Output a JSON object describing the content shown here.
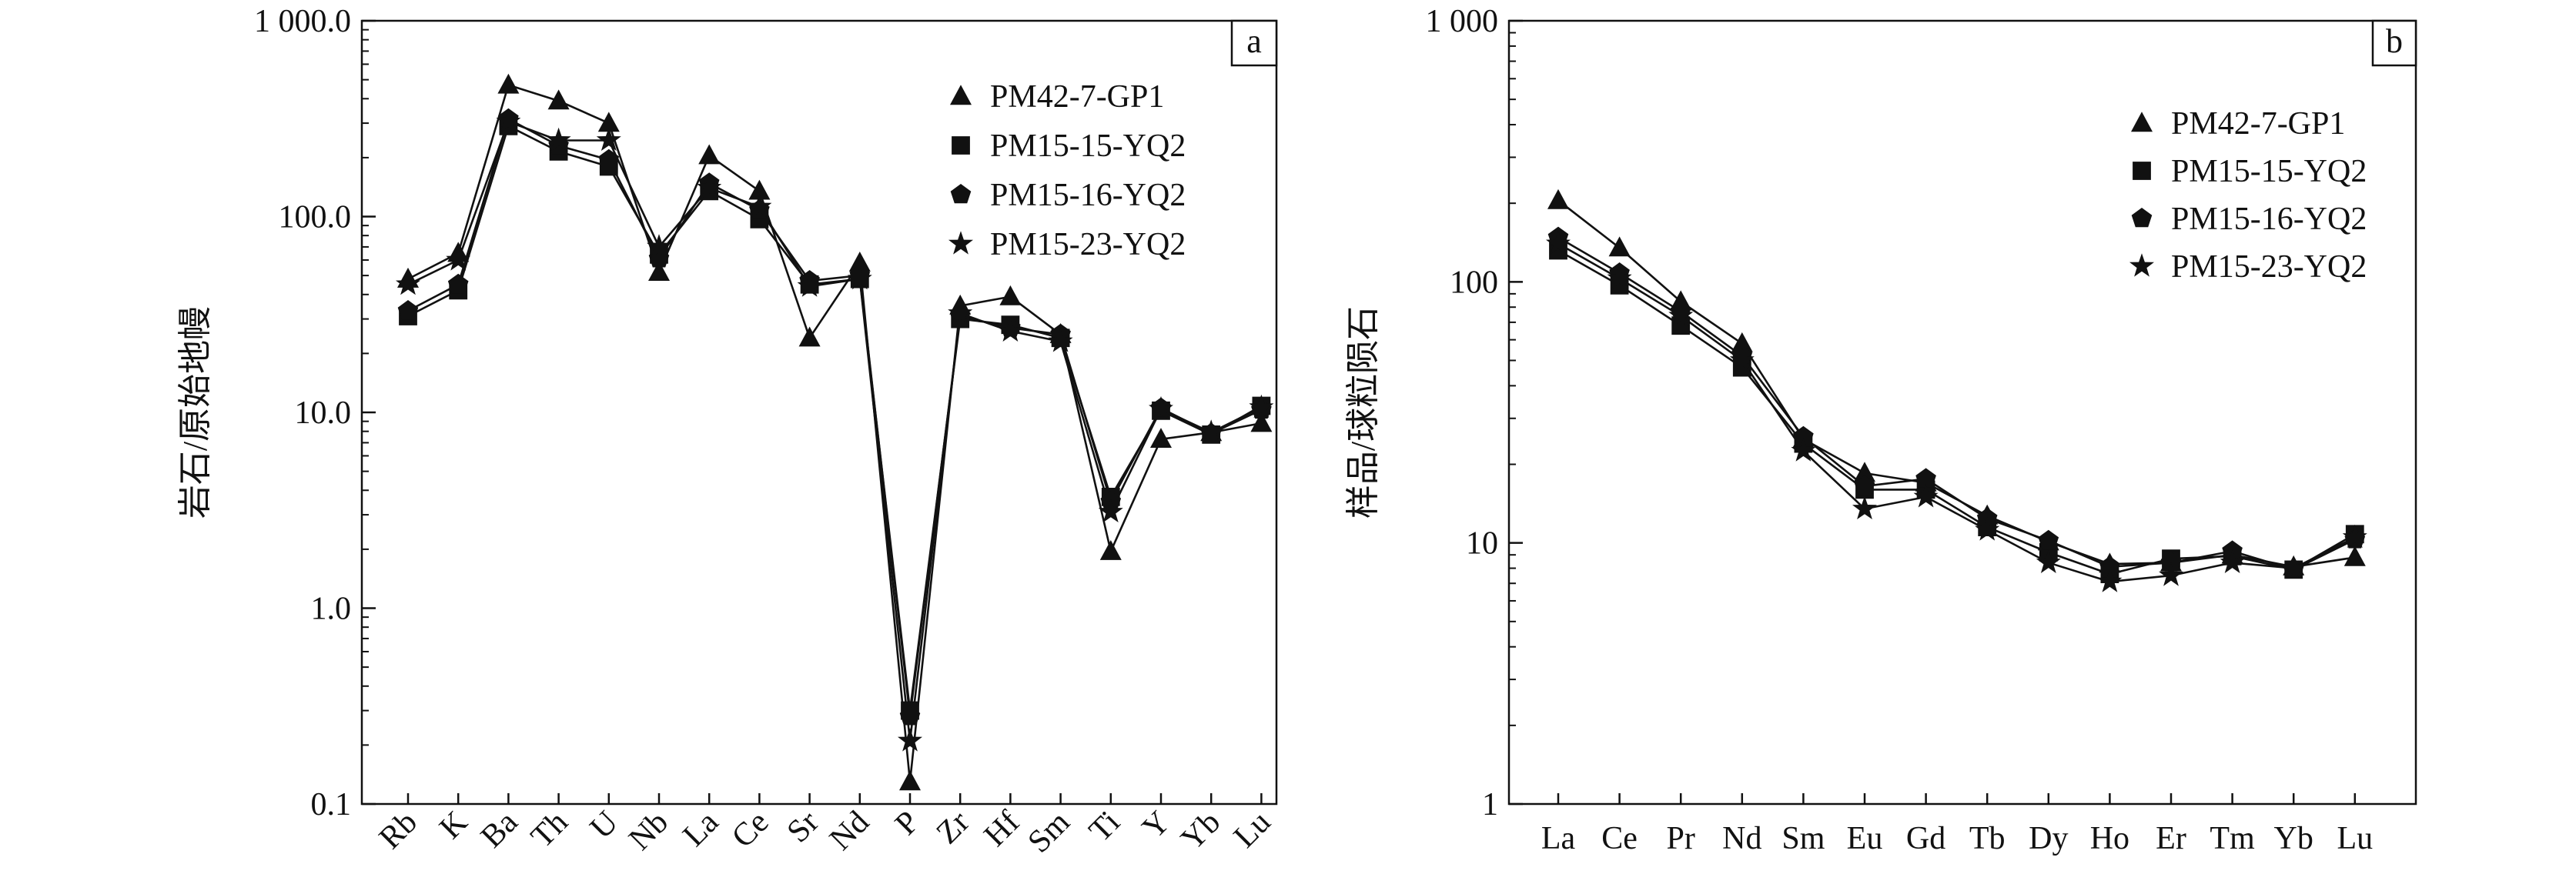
{
  "chart_data": [
    {
      "panel_label": "a",
      "type": "line",
      "ylabel": "岩石/原始地幔",
      "xlabel": "",
      "yscale": "log",
      "ylim": [
        0.1,
        1000
      ],
      "ytick_values": [
        0.1,
        1,
        10,
        100,
        1000
      ],
      "ytick_labels": [
        "0.1",
        "1.0",
        "10.0",
        "100.0",
        "1 000.0"
      ],
      "categories": [
        "Rb",
        "K",
        "Ba",
        "Th",
        "U",
        "Nb",
        "La",
        "Ce",
        "Sr",
        "Nd",
        "P",
        "Zr",
        "Hf",
        "Sm",
        "Ti",
        "Y",
        "Yb",
        "Lu"
      ],
      "legend_position": "top-right",
      "grid": false,
      "series": [
        {
          "name": "PM42-7-GP1",
          "marker": "triangle",
          "values": [
            48,
            65,
            470,
            390,
            300,
            52,
            205,
            135,
            24,
            58,
            0.13,
            35,
            39,
            25,
            1.95,
            7.3,
            7.9,
            8.8
          ]
        },
        {
          "name": "PM15-15-YQ2",
          "marker": "square",
          "values": [
            31,
            42,
            290,
            215,
            180,
            64,
            135,
            97,
            45,
            48,
            0.3,
            30,
            28,
            24,
            3.7,
            10.2,
            7.7,
            10.8
          ]
        },
        {
          "name": "PM15-16-YQ2",
          "marker": "pentagon",
          "values": [
            33,
            45,
            315,
            230,
            195,
            61,
            148,
            108,
            47,
            50,
            0.28,
            31,
            27,
            25,
            3.5,
            10.5,
            7.8,
            10.3
          ]
        },
        {
          "name": "PM15-23-YQ2",
          "marker": "star",
          "values": [
            45,
            60,
            305,
            245,
            245,
            70,
            140,
            112,
            44,
            48,
            0.21,
            32,
            26,
            23,
            3.1,
            10.4,
            7.9,
            10.6
          ]
        }
      ]
    },
    {
      "panel_label": "b",
      "type": "line",
      "ylabel": "样品/球粒陨石",
      "xlabel": "",
      "yscale": "log",
      "ylim": [
        1,
        1000
      ],
      "ytick_values": [
        1,
        10,
        100,
        1000
      ],
      "ytick_labels": [
        "1",
        "10",
        "100",
        "1 000"
      ],
      "categories": [
        "La",
        "Ce",
        "Pr",
        "Nd",
        "Sm",
        "Eu",
        "Gd",
        "Tb",
        "Dy",
        "Ho",
        "Er",
        "Tm",
        "Yb",
        "Lu"
      ],
      "legend_position": "top-right",
      "grid": false,
      "series": [
        {
          "name": "PM42-7-GP1",
          "marker": "triangle",
          "values": [
            205,
            135,
            84,
            58,
            25,
            18.5,
            17,
            12.7,
            10.1,
            8.3,
            8.4,
            9.0,
            8.1,
            8.8
          ]
        },
        {
          "name": "PM15-15-YQ2",
          "marker": "square",
          "values": [
            132,
            97,
            68,
            47,
            24,
            16,
            16,
            11.5,
            9.2,
            7.6,
            8.7,
            8.9,
            7.9,
            10.8
          ]
        },
        {
          "name": "PM15-16-YQ2",
          "marker": "pentagon",
          "values": [
            148,
            108,
            77,
            52,
            25.5,
            16.5,
            17.6,
            12.4,
            10.2,
            8.1,
            8.4,
            9.3,
            7.9,
            10.3
          ]
        },
        {
          "name": "PM15-23-YQ2",
          "marker": "star",
          "values": [
            140,
            103,
            74,
            50,
            22.5,
            13.5,
            15,
            11.2,
            8.4,
            7.1,
            7.5,
            8.4,
            8.0,
            10.5
          ]
        }
      ]
    }
  ]
}
